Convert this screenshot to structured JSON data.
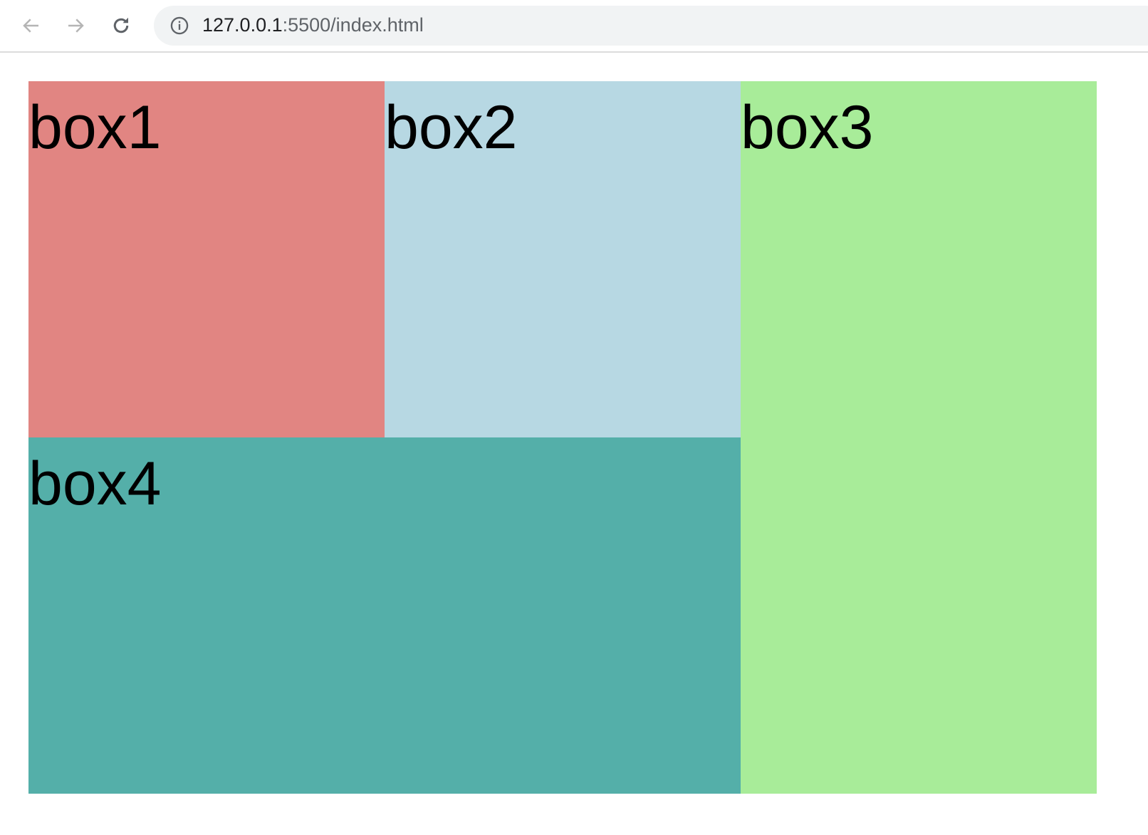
{
  "browser": {
    "url_host": "127.0.0.1",
    "url_rest": ":5500/index.html",
    "icons": [
      "back-arrow-icon",
      "forward-arrow-icon",
      "reload-icon",
      "info-icon"
    ]
  },
  "boxes": [
    {
      "label": "box1",
      "color": "#e18582"
    },
    {
      "label": "box2",
      "color": "#b7d8e3"
    },
    {
      "label": "box3",
      "color": "#a8ec99"
    },
    {
      "label": "box4",
      "color": "#54afa9"
    }
  ]
}
